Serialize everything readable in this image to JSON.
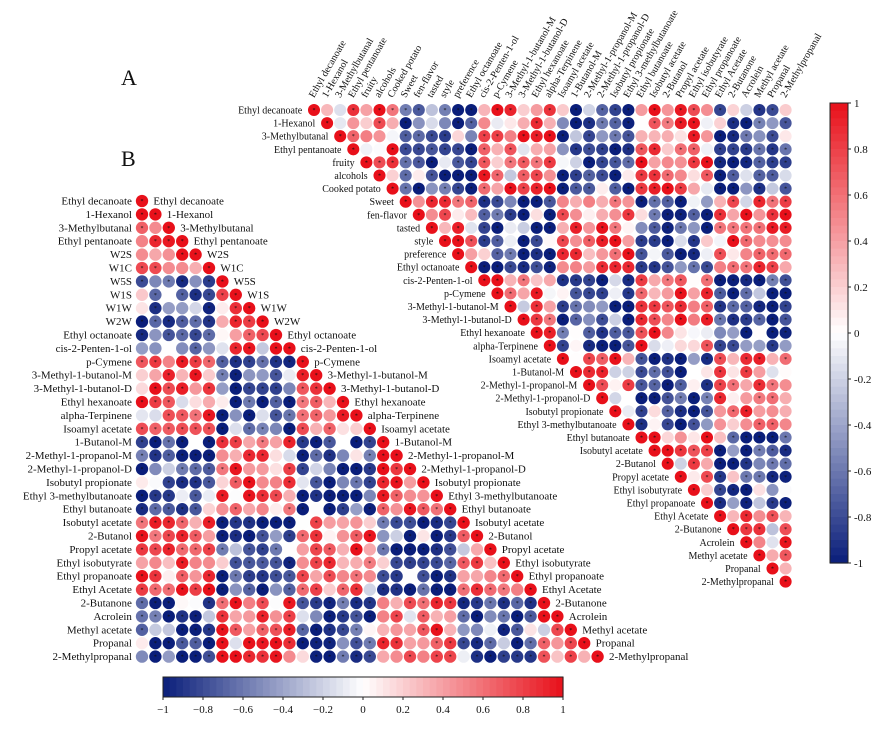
{
  "panel_a": {
    "letter": "A",
    "labels": [
      "Ethyl decanoate",
      "1-Hexanol",
      "3-Methylbutanal",
      "Ethyl pentanoate",
      "fruity",
      "alcohols",
      "Cooked potato",
      "Sweet",
      "fen-flavor",
      "tasted",
      "style",
      "preference",
      "Ethyl octanoate",
      "cis-2-Penten-1-ol",
      "p-Cymene",
      "3-Methyl-1-butanol-M",
      "3-Methyl-1-butanol-D",
      "Ethyl hexanoate",
      "alpha-Terpinene",
      "Isoamyl acetate",
      "1-Butanol-M",
      "2-Methyl-1-propanol-M",
      "2-Methyl-1-propanol-D",
      "Isobutyl propionate",
      "Ethyl 3-methylbutanoate",
      "Ethyl butanoate",
      "Isobutyl acetate",
      "2-Butanol",
      "Propyl acetate",
      "Ethyl isobutyrate",
      "Ethyl propanoate",
      "Ethyl Acetate",
      "2-Butanone",
      "Acrolein",
      "Methyl acetate",
      "Propanal",
      "2-Methylpropanal"
    ],
    "colorbar_ticks": [
      "1",
      "0.8",
      "0.6",
      "0.4",
      "0.2",
      "0",
      "-0.2",
      "-0.4",
      "-0.6",
      "-0.8",
      "-1"
    ]
  },
  "panel_b": {
    "letter": "B",
    "labels": [
      "Ethyl decanoate",
      "1-Hexanol",
      "3-Methylbutanal",
      "Ethyl pentanoate",
      "W2S",
      "W1C",
      "W5S",
      "W1S",
      "W1W",
      "W2W",
      "Ethyl octanoate",
      "cis-2-Penten-1-ol",
      "p-Cymene",
      "3-Methyl-1-butanol-M",
      "3-Methyl-1-butanol-D",
      "Ethyl hexanoate",
      "alpha-Terpinene",
      "Isoamyl acetate",
      "1-Butanol-M",
      "2-Methyl-1-propanol-M",
      "2-Methyl-1-propanol-D",
      "Isobutyl propionate",
      "Ethyl 3-methylbutanoate",
      "Ethyl butanoate",
      "Isobutyl acetate",
      "2-Butanol",
      "Propyl acetate",
      "Ethyl isobutyrate",
      "Ethyl propanoate",
      "Ethyl Acetate",
      "2-Butanone",
      "Acrolein",
      "Methyl acetate",
      "Propanal",
      "2-Methylpropanal"
    ],
    "colorbar_ticks": [
      "−1",
      "−0.8",
      "−0.6",
      "−0.4",
      "−0.2",
      "0",
      "0.2",
      "0.4",
      "0.6",
      "0.8",
      "1"
    ]
  },
  "chart_data": [
    {
      "type": "heatmap",
      "subtype": "correlation-upper-triangle",
      "title": "A",
      "variables_ref": "panel_a.labels",
      "value_range": [
        -1,
        1
      ],
      "colormap": {
        "negative": "#0a1e7a",
        "zero": "#ffffff",
        "positive": "#e8101a"
      },
      "significance_marker": "*",
      "colorbar_orientation": "vertical",
      "note": "Pairwise Pearson correlations; markers indicate significance. Cell values approximated from circle color."
    },
    {
      "type": "heatmap",
      "subtype": "correlation-lower-triangle",
      "title": "B",
      "variables_ref": "panel_b.labels",
      "value_range": [
        -1,
        1
      ],
      "colormap": {
        "negative": "#0a1e7a",
        "zero": "#ffffff",
        "positive": "#e8101a"
      },
      "significance_marker": "*",
      "colorbar_orientation": "horizontal",
      "note": "Pairwise Pearson correlations including E-nose sensors; cell values approximated from circle color."
    }
  ],
  "colors": {
    "positive": "#e8101a",
    "negative": "#0a1e7a",
    "neutral": "#ffffff"
  }
}
